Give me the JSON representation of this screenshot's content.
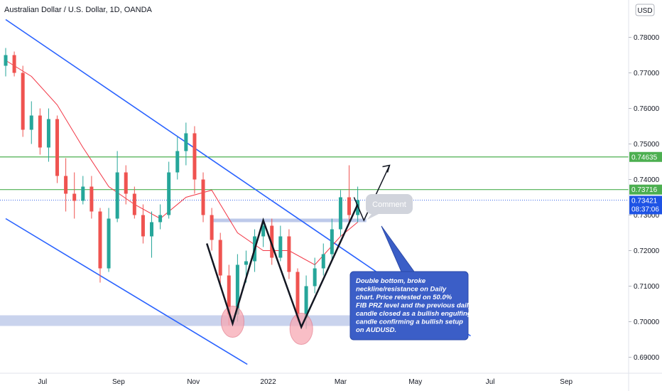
{
  "header": {
    "symbol_title": "Australian Dollar / U.S. Dollar, 1D, OANDA",
    "currency_button": "USD"
  },
  "colors": {
    "bull": "#26a69a",
    "bear": "#ef5350",
    "trend_line": "#2962ff",
    "level_line": "#4caf50",
    "level_badge": "#4caf50",
    "price_badge": "#1e53e5",
    "ma_line": "#f23645",
    "zone": "#b2c0e6",
    "note_bg": "#3b5ec7",
    "circle": "#f7a9b4"
  },
  "chart_data": {
    "type": "candlestick",
    "title": "Australian Dollar / U.S. Dollar, 1D, OANDA",
    "ylim": [
      0.6875,
      0.7845
    ],
    "y_ticks": [
      {
        "value": 0.78,
        "label": "0.78000"
      },
      {
        "value": 0.77,
        "label": "0.77000"
      },
      {
        "value": 0.76,
        "label": "0.76000"
      },
      {
        "value": 0.75,
        "label": "0.75000"
      },
      {
        "value": 0.74,
        "label": "0.74000"
      },
      {
        "value": 0.73,
        "label": "0.73000"
      },
      {
        "value": 0.72,
        "label": "0.72000"
      },
      {
        "value": 0.71,
        "label": "0.71000"
      },
      {
        "value": 0.7,
        "label": "0.70000"
      },
      {
        "value": 0.69,
        "label": "0.69000"
      }
    ],
    "x_ticks": [
      {
        "date": "2021-07-01",
        "label": "Jul"
      },
      {
        "date": "2021-09-01",
        "label": "Sep"
      },
      {
        "date": "2021-11-01",
        "label": "Nov"
      },
      {
        "date": "2022-01-01",
        "label": "2022"
      },
      {
        "date": "2022-03-01",
        "label": "Mar"
      },
      {
        "date": "2022-05-01",
        "label": "May"
      },
      {
        "date": "2022-07-01",
        "label": "Jul"
      },
      {
        "date": "2022-09-01",
        "label": "Sep"
      }
    ],
    "xlim": [
      "2021-06-01",
      "2022-09-20"
    ],
    "candles": [
      {
        "date": "2021-06-01",
        "o": 0.772,
        "h": 0.777,
        "l": 0.769,
        "c": 0.775
      },
      {
        "date": "2021-06-08",
        "o": 0.775,
        "h": 0.776,
        "l": 0.769,
        "c": 0.77
      },
      {
        "date": "2021-06-15",
        "o": 0.77,
        "h": 0.772,
        "l": 0.752,
        "c": 0.754
      },
      {
        "date": "2021-06-22",
        "o": 0.754,
        "h": 0.762,
        "l": 0.75,
        "c": 0.758
      },
      {
        "date": "2021-06-29",
        "o": 0.758,
        "h": 0.76,
        "l": 0.747,
        "c": 0.749
      },
      {
        "date": "2021-07-06",
        "o": 0.749,
        "h": 0.76,
        "l": 0.745,
        "c": 0.757
      },
      {
        "date": "2021-07-13",
        "o": 0.757,
        "h": 0.758,
        "l": 0.739,
        "c": 0.741
      },
      {
        "date": "2021-07-20",
        "o": 0.741,
        "h": 0.746,
        "l": 0.731,
        "c": 0.736
      },
      {
        "date": "2021-07-27",
        "o": 0.736,
        "h": 0.742,
        "l": 0.729,
        "c": 0.734
      },
      {
        "date": "2021-08-03",
        "o": 0.734,
        "h": 0.741,
        "l": 0.733,
        "c": 0.738
      },
      {
        "date": "2021-08-10",
        "o": 0.738,
        "h": 0.741,
        "l": 0.729,
        "c": 0.731
      },
      {
        "date": "2021-08-17",
        "o": 0.731,
        "h": 0.732,
        "l": 0.711,
        "c": 0.715
      },
      {
        "date": "2021-08-24",
        "o": 0.715,
        "h": 0.732,
        "l": 0.714,
        "c": 0.729
      },
      {
        "date": "2021-08-31",
        "o": 0.729,
        "h": 0.748,
        "l": 0.728,
        "c": 0.742
      },
      {
        "date": "2021-09-07",
        "o": 0.742,
        "h": 0.744,
        "l": 0.733,
        "c": 0.736
      },
      {
        "date": "2021-09-14",
        "o": 0.736,
        "h": 0.738,
        "l": 0.729,
        "c": 0.73
      },
      {
        "date": "2021-09-21",
        "o": 0.73,
        "h": 0.733,
        "l": 0.722,
        "c": 0.724
      },
      {
        "date": "2021-09-28",
        "o": 0.724,
        "h": 0.731,
        "l": 0.718,
        "c": 0.728
      },
      {
        "date": "2021-10-05",
        "o": 0.728,
        "h": 0.733,
        "l": 0.726,
        "c": 0.73
      },
      {
        "date": "2021-10-12",
        "o": 0.73,
        "h": 0.745,
        "l": 0.729,
        "c": 0.742
      },
      {
        "date": "2021-10-19",
        "o": 0.742,
        "h": 0.752,
        "l": 0.74,
        "c": 0.748
      },
      {
        "date": "2021-10-26",
        "o": 0.748,
        "h": 0.756,
        "l": 0.744,
        "c": 0.753
      },
      {
        "date": "2021-11-02",
        "o": 0.753,
        "h": 0.755,
        "l": 0.736,
        "c": 0.74
      },
      {
        "date": "2021-11-09",
        "o": 0.74,
        "h": 0.742,
        "l": 0.728,
        "c": 0.73
      },
      {
        "date": "2021-11-16",
        "o": 0.73,
        "h": 0.732,
        "l": 0.72,
        "c": 0.723
      },
      {
        "date": "2021-11-23",
        "o": 0.723,
        "h": 0.725,
        "l": 0.71,
        "c": 0.713
      },
      {
        "date": "2021-11-30",
        "o": 0.713,
        "h": 0.716,
        "l": 0.699,
        "c": 0.702
      },
      {
        "date": "2021-12-07",
        "o": 0.702,
        "h": 0.719,
        "l": 0.7,
        "c": 0.716
      },
      {
        "date": "2021-12-14",
        "o": 0.716,
        "h": 0.72,
        "l": 0.711,
        "c": 0.717
      },
      {
        "date": "2021-12-21",
        "o": 0.717,
        "h": 0.726,
        "l": 0.714,
        "c": 0.724
      },
      {
        "date": "2021-12-28",
        "o": 0.724,
        "h": 0.729,
        "l": 0.721,
        "c": 0.727
      },
      {
        "date": "2022-01-04",
        "o": 0.727,
        "h": 0.729,
        "l": 0.716,
        "c": 0.718
      },
      {
        "date": "2022-01-11",
        "o": 0.718,
        "h": 0.727,
        "l": 0.717,
        "c": 0.724
      },
      {
        "date": "2022-01-18",
        "o": 0.724,
        "h": 0.726,
        "l": 0.712,
        "c": 0.714
      },
      {
        "date": "2022-01-25",
        "o": 0.714,
        "h": 0.715,
        "l": 0.7,
        "c": 0.701
      },
      {
        "date": "2022-02-01",
        "o": 0.701,
        "h": 0.713,
        "l": 0.698,
        "c": 0.71
      },
      {
        "date": "2022-02-08",
        "o": 0.71,
        "h": 0.718,
        "l": 0.708,
        "c": 0.715
      },
      {
        "date": "2022-02-15",
        "o": 0.715,
        "h": 0.722,
        "l": 0.713,
        "c": 0.719
      },
      {
        "date": "2022-02-22",
        "o": 0.719,
        "h": 0.729,
        "l": 0.717,
        "c": 0.726
      },
      {
        "date": "2022-03-01",
        "o": 0.726,
        "h": 0.737,
        "l": 0.724,
        "c": 0.735
      },
      {
        "date": "2022-03-08",
        "o": 0.735,
        "h": 0.744,
        "l": 0.728,
        "c": 0.73
      },
      {
        "date": "2022-03-15",
        "o": 0.73,
        "h": 0.738,
        "l": 0.728,
        "c": 0.7342
      }
    ],
    "moving_average": [
      {
        "date": "2021-06-01",
        "v": 0.7735
      },
      {
        "date": "2021-06-22",
        "v": 0.769
      },
      {
        "date": "2021-07-13",
        "v": 0.761
      },
      {
        "date": "2021-08-03",
        "v": 0.749
      },
      {
        "date": "2021-08-24",
        "v": 0.738
      },
      {
        "date": "2021-09-14",
        "v": 0.733
      },
      {
        "date": "2021-10-05",
        "v": 0.729
      },
      {
        "date": "2021-10-26",
        "v": 0.735
      },
      {
        "date": "2021-11-16",
        "v": 0.737
      },
      {
        "date": "2021-12-07",
        "v": 0.725
      },
      {
        "date": "2021-12-28",
        "v": 0.72
      },
      {
        "date": "2022-01-18",
        "v": 0.72
      },
      {
        "date": "2022-02-08",
        "v": 0.716
      },
      {
        "date": "2022-03-01",
        "v": 0.724
      },
      {
        "date": "2022-03-15",
        "v": 0.728
      }
    ],
    "levels": [
      {
        "value": 0.74635,
        "label": "0.74635"
      },
      {
        "value": 0.73716,
        "label": "0.73716"
      }
    ],
    "current_price": {
      "value": 0.73421,
      "label": "0.73421",
      "countdown": "08:37:06"
    },
    "neckline": {
      "value": 0.7285,
      "from": "2021-11-15",
      "to": "2022-03-22"
    },
    "support_zone": {
      "from_value": 0.6988,
      "to_value": 0.7018
    },
    "channel_upper": {
      "p1": {
        "date": "2021-06-01",
        "v": 0.785
      },
      "p2": {
        "date": "2022-06-15",
        "v": 0.696
      }
    },
    "channel_lower": {
      "p1": {
        "date": "2021-06-01",
        "v": 0.729
      },
      "p2": {
        "date": "2021-12-15",
        "v": 0.688
      }
    },
    "double_bottom": [
      {
        "date": "2021-11-12",
        "v": 0.722
      },
      {
        "date": "2021-12-03",
        "v": 0.6995
      },
      {
        "date": "2021-12-28",
        "v": 0.7285
      },
      {
        "date": "2022-01-28",
        "v": 0.6985
      },
      {
        "date": "2022-03-15",
        "v": 0.733
      }
    ],
    "bottom_circles": [
      {
        "date": "2021-12-03",
        "v": 0.7
      },
      {
        "date": "2022-01-28",
        "v": 0.698
      }
    ],
    "forecast_arrow": [
      {
        "date": "2022-03-12",
        "v": 0.735
      },
      {
        "date": "2022-03-20",
        "v": 0.7285
      },
      {
        "date": "2022-04-10",
        "v": 0.744
      }
    ],
    "comment": "Comment",
    "note_text": [
      "Double bottom, broke",
      "neckline/resistance on Daily",
      "chart. Price retested on 50.0%",
      "FIB PRZ level and the previous daily",
      "candle closed as a bullish engulfing",
      "candle confirming a bullish setup",
      "on AUDUSD."
    ]
  }
}
